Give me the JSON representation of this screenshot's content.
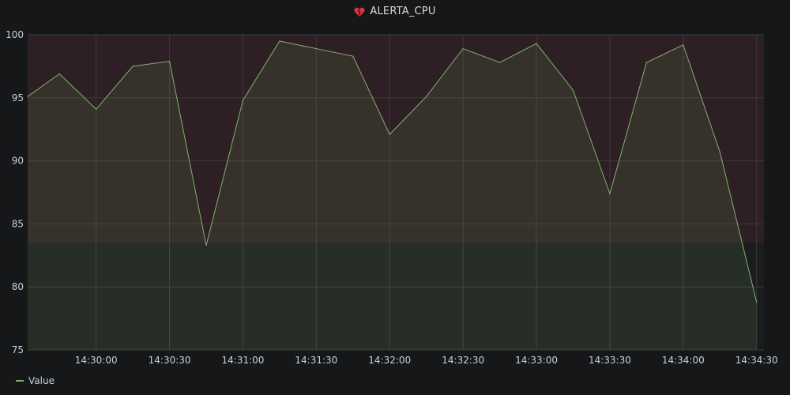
{
  "panel": {
    "title": "ALERTA_CPU",
    "title_icon": "broken-heart-icon",
    "alert_color": "#e02f44"
  },
  "chart_data": {
    "type": "area",
    "title": "ALERTA_CPU",
    "xlabel": "",
    "ylabel": "",
    "ylim": [
      75,
      100
    ],
    "y_ticks": [
      "75",
      "80",
      "85",
      "90",
      "95",
      "100"
    ],
    "x_ticks": [
      "14:30:00",
      "14:30:30",
      "14:31:00",
      "14:31:30",
      "14:32:00",
      "14:32:30",
      "14:33:00",
      "14:33:30",
      "14:34:00",
      "14:34:30"
    ],
    "grid": true,
    "legend_position": "bottom-left",
    "alert_threshold": 83.5,
    "series": [
      {
        "name": "Value",
        "color": "#7eb26d",
        "x": [
          "14:29:32",
          "14:29:45",
          "14:30:00",
          "14:30:15",
          "14:30:30",
          "14:30:45",
          "14:31:00",
          "14:31:15",
          "14:31:30",
          "14:31:45",
          "14:32:00",
          "14:32:15",
          "14:32:30",
          "14:32:45",
          "14:33:00",
          "14:33:15",
          "14:33:30",
          "14:33:45",
          "14:34:00",
          "14:34:15",
          "14:34:30"
        ],
        "values": [
          95.1,
          96.9,
          94.1,
          97.5,
          97.9,
          83.3,
          94.8,
          99.5,
          98.9,
          98.3,
          92.1,
          95.1,
          98.9,
          97.8,
          99.3,
          95.6,
          87.4,
          97.8,
          99.2,
          90.7,
          78.8
        ]
      }
    ]
  },
  "legend": {
    "items": [
      {
        "label": "Value",
        "color": "#7eb26d"
      }
    ]
  }
}
